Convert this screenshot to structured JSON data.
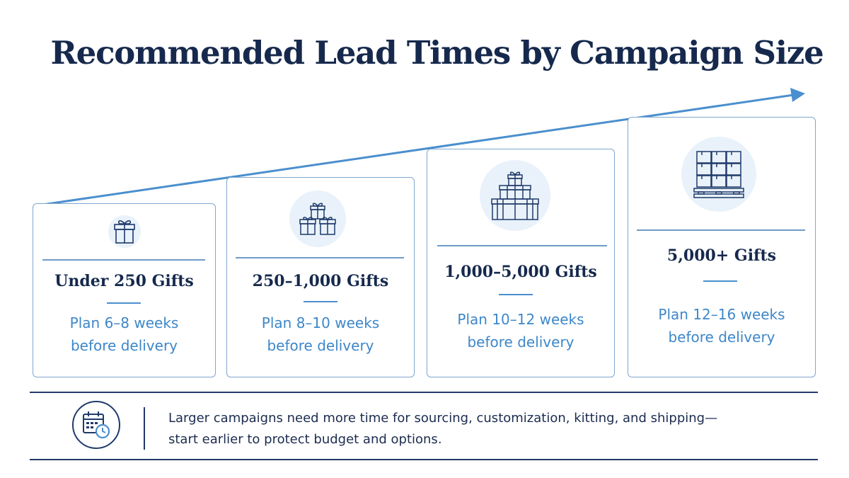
{
  "title": "Recommended Lead Times by Campaign Size",
  "tiers": [
    {
      "label": "Under 250 Gifts",
      "plan_line1": "Plan 6–8 weeks",
      "plan_line2": "before delivery",
      "icon": "single-gift-icon"
    },
    {
      "label": "250–1,000 Gifts",
      "plan_line1": "Plan 8–10 weeks",
      "plan_line2": "before delivery",
      "icon": "gift-group-icon"
    },
    {
      "label": "1,000–5,000 Gifts",
      "plan_line1": "Plan 10–12 weeks",
      "plan_line2": "before delivery",
      "icon": "gift-stack-icon"
    },
    {
      "label": "5,000+ Gifts",
      "plan_line1": "Plan 12–16 weeks",
      "plan_line2": "before delivery",
      "icon": "pallet-boxes-icon"
    }
  ],
  "footer": {
    "icon": "calendar-clock-icon",
    "line1": "Larger campaigns need more time for sourcing, customization, kitting, and shipping—",
    "line2": "start earlier to protect budget and options."
  },
  "colors": {
    "navy": "#16294d",
    "accent_blue": "#3d87c9",
    "card_border": "#7fa6cf",
    "icon_bg": "#e9f2fa"
  }
}
